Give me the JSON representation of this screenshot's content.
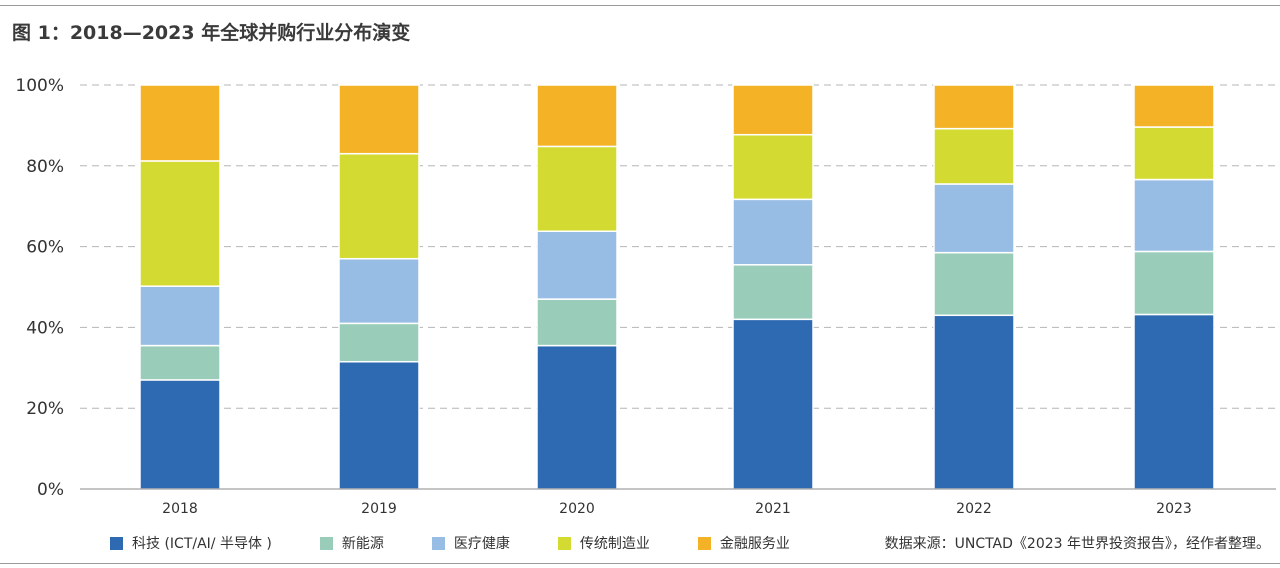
{
  "chart_data": {
    "type": "bar",
    "stacked": true,
    "title": "图 1：2018—2023 年全球并购行业分布演变",
    "categories": [
      "2018",
      "2019",
      "2020",
      "2021",
      "2022",
      "2023"
    ],
    "y_ticks": [
      "0%",
      "20%",
      "40%",
      "60%",
      "80%",
      "100%"
    ],
    "ylim": [
      0,
      100
    ],
    "grid": "dashed-horizontal",
    "legend_position": "bottom",
    "series": [
      {
        "name": "科技 (ICT/AI/ 半导体 )",
        "color": "#2e6ab2",
        "values": [
          27,
          31.5,
          35.5,
          42,
          43,
          43.2
        ]
      },
      {
        "name": "新能源",
        "color": "#99cdb9",
        "values": [
          8.5,
          9.5,
          11.5,
          13.5,
          15.5,
          15.6
        ]
      },
      {
        "name": "医疗健康",
        "color": "#97bde4",
        "values": [
          14.7,
          16,
          16.8,
          16.2,
          17,
          17.8
        ]
      },
      {
        "name": "传统制造业",
        "color": "#d3db33",
        "values": [
          31,
          26,
          21,
          16,
          13.7,
          13
        ]
      },
      {
        "name": "金融服务业",
        "color": "#f4b326",
        "values": [
          18.8,
          17,
          15.2,
          12.3,
          10.8,
          10.4
        ]
      }
    ],
    "source": "数据来源：UNCTAD《2023 年世界投资报告》，经作者整理。"
  }
}
